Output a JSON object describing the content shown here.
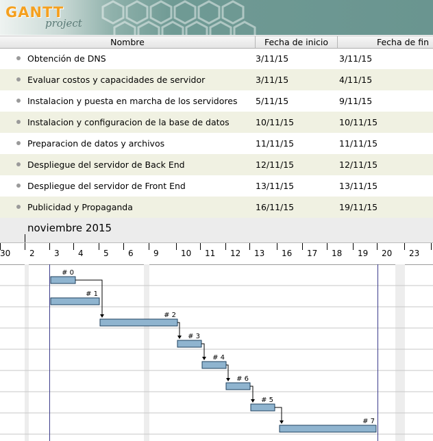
{
  "app": {
    "logo_word": "GANTT",
    "logo_sub": "project"
  },
  "columns": {
    "name": "Nombre",
    "start": "Fecha de inicio",
    "end": "Fecha de fin"
  },
  "tasks": [
    {
      "name": "Obtención de DNS",
      "start": "3/11/15",
      "end": "3/11/15",
      "bar_label": "# 0"
    },
    {
      "name": "Evaluar costos y capacidades de servidor",
      "start": "3/11/15",
      "end": "4/11/15",
      "bar_label": "# 1"
    },
    {
      "name": "Instalacion y puesta en marcha de los servidores",
      "start": "5/11/15",
      "end": "9/11/15",
      "bar_label": "# 2"
    },
    {
      "name": "Instalacion y configuracion de la base de datos",
      "start": "10/11/15",
      "end": "10/11/15",
      "bar_label": "# 3"
    },
    {
      "name": "Preparacion de datos y archivos",
      "start": "11/11/15",
      "end": "11/11/15",
      "bar_label": "# 4"
    },
    {
      "name": "Despliegue del servidor de Back End",
      "start": "12/11/15",
      "end": "12/11/15",
      "bar_label": "# 6"
    },
    {
      "name": "Despliegue del servidor de Front End",
      "start": "13/11/15",
      "end": "13/11/15",
      "bar_label": "# 5"
    },
    {
      "name": "Publicidad y Propaganda",
      "start": "16/11/15",
      "end": "19/11/15",
      "bar_label": "# 7"
    }
  ],
  "timeline": {
    "month_label": "noviembre 2015",
    "day_labels": [
      "30",
      "2",
      "3",
      "4",
      "5",
      "6",
      "9",
      "10",
      "11",
      "12",
      "13",
      "16",
      "17",
      "18",
      "19",
      "20",
      "23"
    ]
  },
  "colors": {
    "bar_fill": "#8fb4cf",
    "bar_stroke": "#1e3f5e",
    "row_alt": "#f0f1e2",
    "weekend": "#ededed",
    "marker_line": "#3a3a8a"
  }
}
